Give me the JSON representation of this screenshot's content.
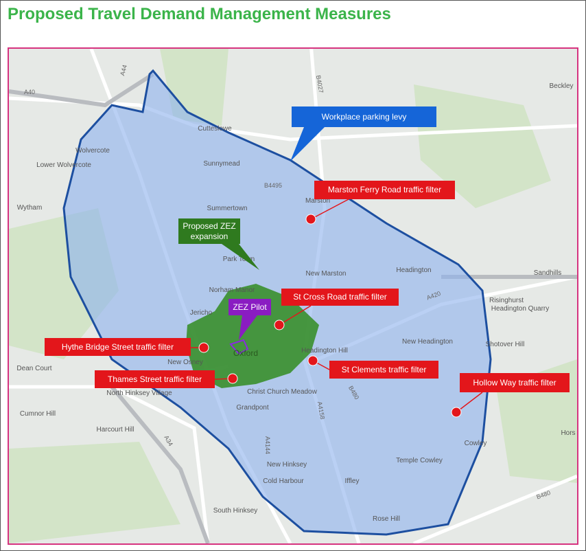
{
  "header": {
    "title": "Proposed Travel Demand Management Measures"
  },
  "callouts": [
    {
      "label": "Workplace parking levy",
      "kind": "levy"
    },
    {
      "label": "Marston Ferry Road traffic filter",
      "kind": "filter"
    },
    {
      "label": "Proposed ZEZ expansion",
      "kind": "zez"
    },
    {
      "label": "ZEZ Pilot",
      "kind": "pilot"
    },
    {
      "label": "St Cross Road traffic filter",
      "kind": "filter"
    },
    {
      "label": "Hythe Bridge Street traffic filter",
      "kind": "filter"
    },
    {
      "label": "Thames Street traffic filter",
      "kind": "filter"
    },
    {
      "label": "St Clements traffic filter",
      "kind": "filter"
    },
    {
      "label": "Hollow Way traffic filter",
      "kind": "filter"
    }
  ],
  "places": [
    "Cutteslowe",
    "Wolvercote",
    "Lower Wolvercote",
    "Sunnymead",
    "Wytham",
    "Summertown",
    "Marston",
    "Park Town",
    "New Marston",
    "Headington",
    "Norham Manor",
    "Jericho",
    "Risinghurst",
    "Headington Quarry",
    "New Headington",
    "Shotover Hill",
    "Headington Hill",
    "Oxford",
    "New Osney",
    "Dean Court",
    "Christ Church Meadow",
    "North Hinksey Village",
    "Cumnor Hill",
    "Harcourt Hill",
    "Grandpont",
    "Cowley",
    "Temple Cowley",
    "New Hinksey",
    "Cold Harbour",
    "Iffley",
    "South Hinksey",
    "Rose Hill",
    "Beckley",
    "Sandhills",
    "Hors"
  ],
  "roads": [
    "A40",
    "A44",
    "B4027",
    "B4495",
    "A420",
    "B480",
    "A4158",
    "A4144",
    "A34",
    "B480"
  ]
}
